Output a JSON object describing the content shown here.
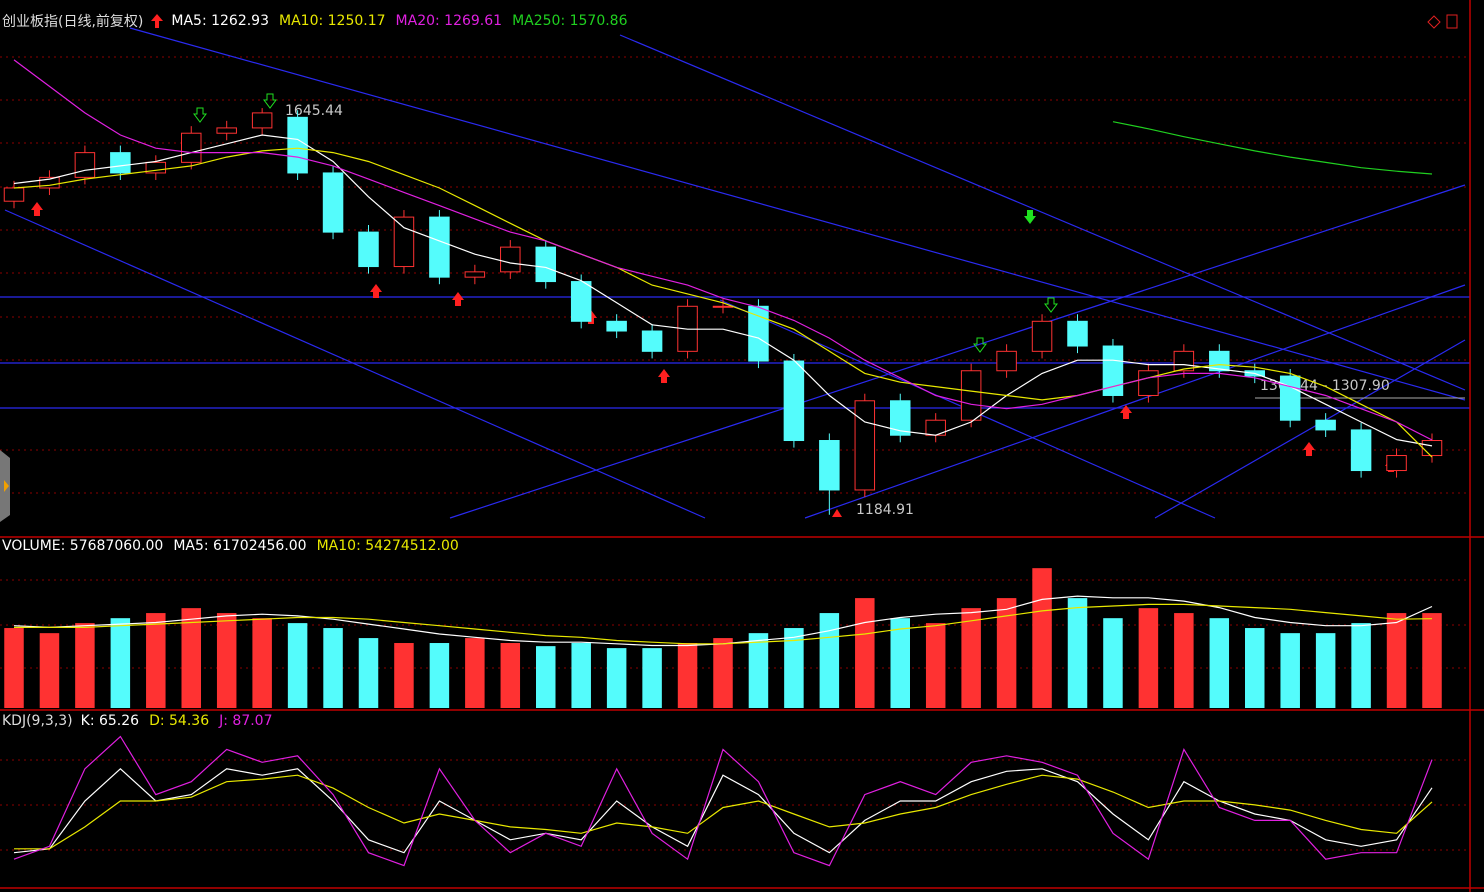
{
  "chart_data": [
    {
      "type": "candlestick",
      "title": "创业板指(日线,前复权)",
      "up_color": "#ff3232",
      "down_color": "#54fcfc",
      "ylim": [
        1162,
        1752
      ],
      "open": [
        1540,
        1555,
        1567,
        1595,
        1572,
        1584,
        1617,
        1623,
        1635,
        1572,
        1505,
        1466,
        1522,
        1454,
        1460,
        1488,
        1449,
        1404,
        1393,
        1370,
        1421,
        1421,
        1359,
        1269,
        1213,
        1314,
        1275,
        1292,
        1348,
        1370,
        1404,
        1376,
        1320,
        1348,
        1370,
        1348,
        1342,
        1292,
        1281,
        1235,
        1252
      ],
      "high": [
        1563,
        1575,
        1603,
        1603,
        1592,
        1625,
        1631,
        1645.44,
        1643,
        1580,
        1513,
        1530,
        1530,
        1468,
        1496,
        1496,
        1457,
        1412,
        1401,
        1429,
        1429,
        1429,
        1367,
        1277,
        1322,
        1322,
        1300,
        1356,
        1378,
        1412,
        1412,
        1384,
        1356,
        1378,
        1378,
        1356,
        1350,
        1300,
        1289,
        1260,
        1277
      ],
      "low": [
        1532,
        1547,
        1559,
        1564,
        1564,
        1576,
        1609,
        1615,
        1564,
        1497,
        1458,
        1458,
        1446,
        1446,
        1452,
        1441,
        1396,
        1385,
        1362,
        1362,
        1413,
        1351,
        1261,
        1184.91,
        1205,
        1267,
        1267,
        1284,
        1340,
        1362,
        1368,
        1312,
        1312,
        1340,
        1340,
        1334,
        1284,
        1273,
        1227,
        1227,
        1244
      ],
      "close": [
        1555,
        1567,
        1595,
        1572,
        1584,
        1617,
        1623,
        1640,
        1572,
        1505,
        1466,
        1522,
        1454,
        1460,
        1488,
        1449,
        1404,
        1393,
        1370,
        1421,
        1421,
        1359,
        1269,
        1213,
        1314,
        1275,
        1292,
        1348,
        1370,
        1404,
        1376,
        1320,
        1348,
        1370,
        1348,
        1342,
        1292,
        1281,
        1235,
        1252,
        1269
      ],
      "series": [
        {
          "name": "MA5: 1262.93",
          "color": "#ffffff",
          "values": [
            1560,
            1565,
            1575,
            1580,
            1585,
            1595,
            1605,
            1615,
            1610,
            1585,
            1545,
            1510,
            1495,
            1480,
            1470,
            1465,
            1450,
            1425,
            1400,
            1395,
            1395,
            1385,
            1360,
            1320,
            1290,
            1280,
            1275,
            1290,
            1320,
            1345,
            1360,
            1360,
            1355,
            1355,
            1350,
            1345,
            1330,
            1310,
            1290,
            1270,
            1262.93
          ]
        },
        {
          "name": "MA10: 1250.17",
          "color": "#e8e800",
          "values": [
            1555,
            1558,
            1565,
            1570,
            1575,
            1580,
            1590,
            1597,
            1600,
            1595,
            1585,
            1570,
            1555,
            1535,
            1515,
            1495,
            1480,
            1465,
            1445,
            1435,
            1425,
            1410,
            1395,
            1370,
            1345,
            1335,
            1330,
            1325,
            1320,
            1315,
            1320,
            1330,
            1340,
            1350,
            1355,
            1352,
            1345,
            1330,
            1310,
            1290,
            1250.17
          ]
        },
        {
          "name": "MA20: 1269.61",
          "color": "#e020e0",
          "values": [
            1700,
            1670,
            1640,
            1615,
            1600,
            1595,
            1595,
            1595,
            1590,
            1580,
            1565,
            1550,
            1535,
            1520,
            1505,
            1495,
            1480,
            1465,
            1455,
            1445,
            1430,
            1420,
            1405,
            1385,
            1360,
            1340,
            1320,
            1310,
            1305,
            1310,
            1320,
            1330,
            1340,
            1345,
            1345,
            1340,
            1330,
            1320,
            1305,
            1290,
            1269.61
          ]
        },
        {
          "name": "MA250: 1570.86",
          "color": "#20d020",
          "values": [
            null,
            null,
            null,
            null,
            null,
            null,
            null,
            null,
            null,
            null,
            null,
            null,
            null,
            null,
            null,
            null,
            null,
            null,
            null,
            null,
            null,
            null,
            null,
            null,
            null,
            null,
            null,
            null,
            null,
            null,
            null,
            1630,
            1622,
            1613,
            1605,
            1597,
            1590,
            1584,
            1578,
            1574,
            1570.86
          ]
        }
      ],
      "annotations": [
        {
          "text": "1645.44"
        },
        {
          "text": "1184.91"
        },
        {
          "text": "1309.44 - 1307.90"
        }
      ]
    },
    {
      "type": "bar",
      "up_color": "#ff3232",
      "down_color": "#54fcfc",
      "ylim": [
        0,
        93000000
      ],
      "series": [
        {
          "name": "VOLUME: 57687060.00",
          "color": "#ffffff",
          "values": [
            48600000,
            45500000,
            51600000,
            54600000,
            57700000,
            60700000,
            57700000,
            54600000,
            51600000,
            48600000,
            42500000,
            39500000,
            39500000,
            42500000,
            39500000,
            37600000,
            39500000,
            36400000,
            36400000,
            39500000,
            42500000,
            45500000,
            48600000,
            57700000,
            66800000,
            54600000,
            51600000,
            60700000,
            66800000,
            85000000,
            66800000,
            54600000,
            60700000,
            57700000,
            54600000,
            48600000,
            45500000,
            45500000,
            51600000,
            57700000,
            57687060
          ]
        },
        {
          "name": "MA5: 61702456.00",
          "color": "#ffffff",
          "values": [
            50000000,
            49000000,
            50000000,
            51000000,
            52000000,
            54000000,
            56000000,
            57000000,
            56000000,
            54000000,
            51000000,
            48000000,
            45000000,
            43000000,
            41000000,
            40000000,
            40000000,
            39000000,
            38000000,
            38000000,
            39000000,
            41000000,
            43000000,
            47000000,
            52000000,
            55000000,
            57000000,
            58000000,
            60000000,
            66000000,
            68000000,
            67000000,
            67000000,
            65000000,
            61000000,
            55000000,
            52000000,
            50000000,
            50000000,
            52000000,
            61702456
          ]
        },
        {
          "name": "MA10: 54274512.00",
          "color": "#e8e800",
          "values": [
            49000000,
            49000000,
            49000000,
            50000000,
            51000000,
            52000000,
            53000000,
            54000000,
            55000000,
            55000000,
            54000000,
            52000000,
            50000000,
            48000000,
            46000000,
            44000000,
            43000000,
            41000000,
            40000000,
            39000000,
            39000000,
            40000000,
            41000000,
            43000000,
            45000000,
            48000000,
            50000000,
            53000000,
            56000000,
            59000000,
            61000000,
            62000000,
            63000000,
            63000000,
            62000000,
            61000000,
            60000000,
            58000000,
            56000000,
            54000000,
            54274512
          ]
        }
      ]
    },
    {
      "type": "line",
      "title": "KDJ(9,3,3)",
      "ylim": [
        -10,
        110
      ],
      "series": [
        {
          "name": "K: 65.26",
          "color": "#ffffff",
          "values": [
            15,
            18,
            55,
            80,
            55,
            60,
            80,
            75,
            80,
            55,
            25,
            15,
            55,
            40,
            25,
            30,
            25,
            55,
            35,
            20,
            75,
            60,
            30,
            15,
            40,
            55,
            55,
            70,
            78,
            80,
            70,
            45,
            25,
            70,
            55,
            45,
            40,
            25,
            20,
            25,
            65.26
          ]
        },
        {
          "name": "D: 54.36",
          "color": "#e8e800",
          "values": [
            18,
            18,
            35,
            55,
            55,
            58,
            70,
            72,
            75,
            65,
            50,
            38,
            45,
            40,
            35,
            33,
            30,
            38,
            35,
            30,
            50,
            55,
            45,
            35,
            38,
            45,
            50,
            60,
            68,
            75,
            72,
            62,
            50,
            55,
            55,
            52,
            48,
            40,
            33,
            30,
            54.36
          ]
        },
        {
          "name": "J: 87.07",
          "color": "#e020e0",
          "values": [
            10,
            20,
            80,
            105,
            60,
            70,
            95,
            85,
            90,
            60,
            15,
            5,
            80,
            40,
            15,
            30,
            20,
            80,
            30,
            10,
            95,
            70,
            15,
            5,
            60,
            70,
            60,
            85,
            90,
            85,
            75,
            30,
            10,
            95,
            50,
            40,
            40,
            10,
            15,
            15,
            87.07
          ]
        }
      ]
    }
  ]
}
